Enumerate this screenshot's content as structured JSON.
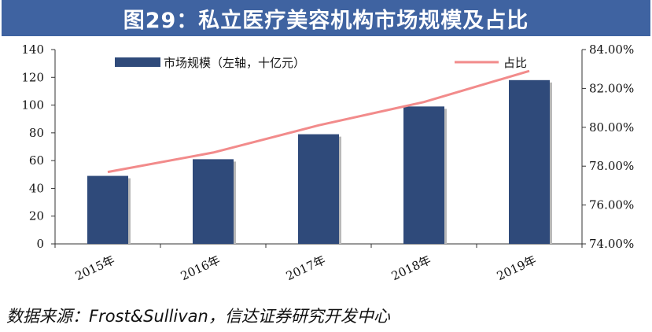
{
  "title": "图29：私立医疗美容机构市场规模及占比",
  "source": "数据来源：Frost&Sullivan，信达证券研究开发中心",
  "colors": {
    "title_bg": "#3f63a1",
    "bar": "#2f4a7a",
    "line": "#f28b8b",
    "axis": "#333333"
  },
  "chart_data": {
    "type": "bar",
    "categories": [
      "2015年",
      "2016年",
      "2017年",
      "2018年",
      "2019年"
    ],
    "series": [
      {
        "name": "市场规模（左轴，十亿元）",
        "type": "bar",
        "axis": "left",
        "values": [
          49,
          61,
          79,
          99,
          118
        ]
      },
      {
        "name": "占比",
        "type": "line",
        "axis": "right",
        "values": [
          77.7,
          78.7,
          80.1,
          81.3,
          82.9
        ]
      }
    ],
    "left_axis": {
      "ylim": [
        0,
        140
      ],
      "ticks": [
        "0",
        "20",
        "40",
        "60",
        "80",
        "100",
        "120",
        "140"
      ]
    },
    "right_axis": {
      "ylim": [
        74,
        84
      ],
      "ticks": [
        "74.00%",
        "76.00%",
        "78.00%",
        "80.00%",
        "82.00%",
        "84.00%"
      ]
    },
    "legend_placement": "top",
    "grid": false
  }
}
